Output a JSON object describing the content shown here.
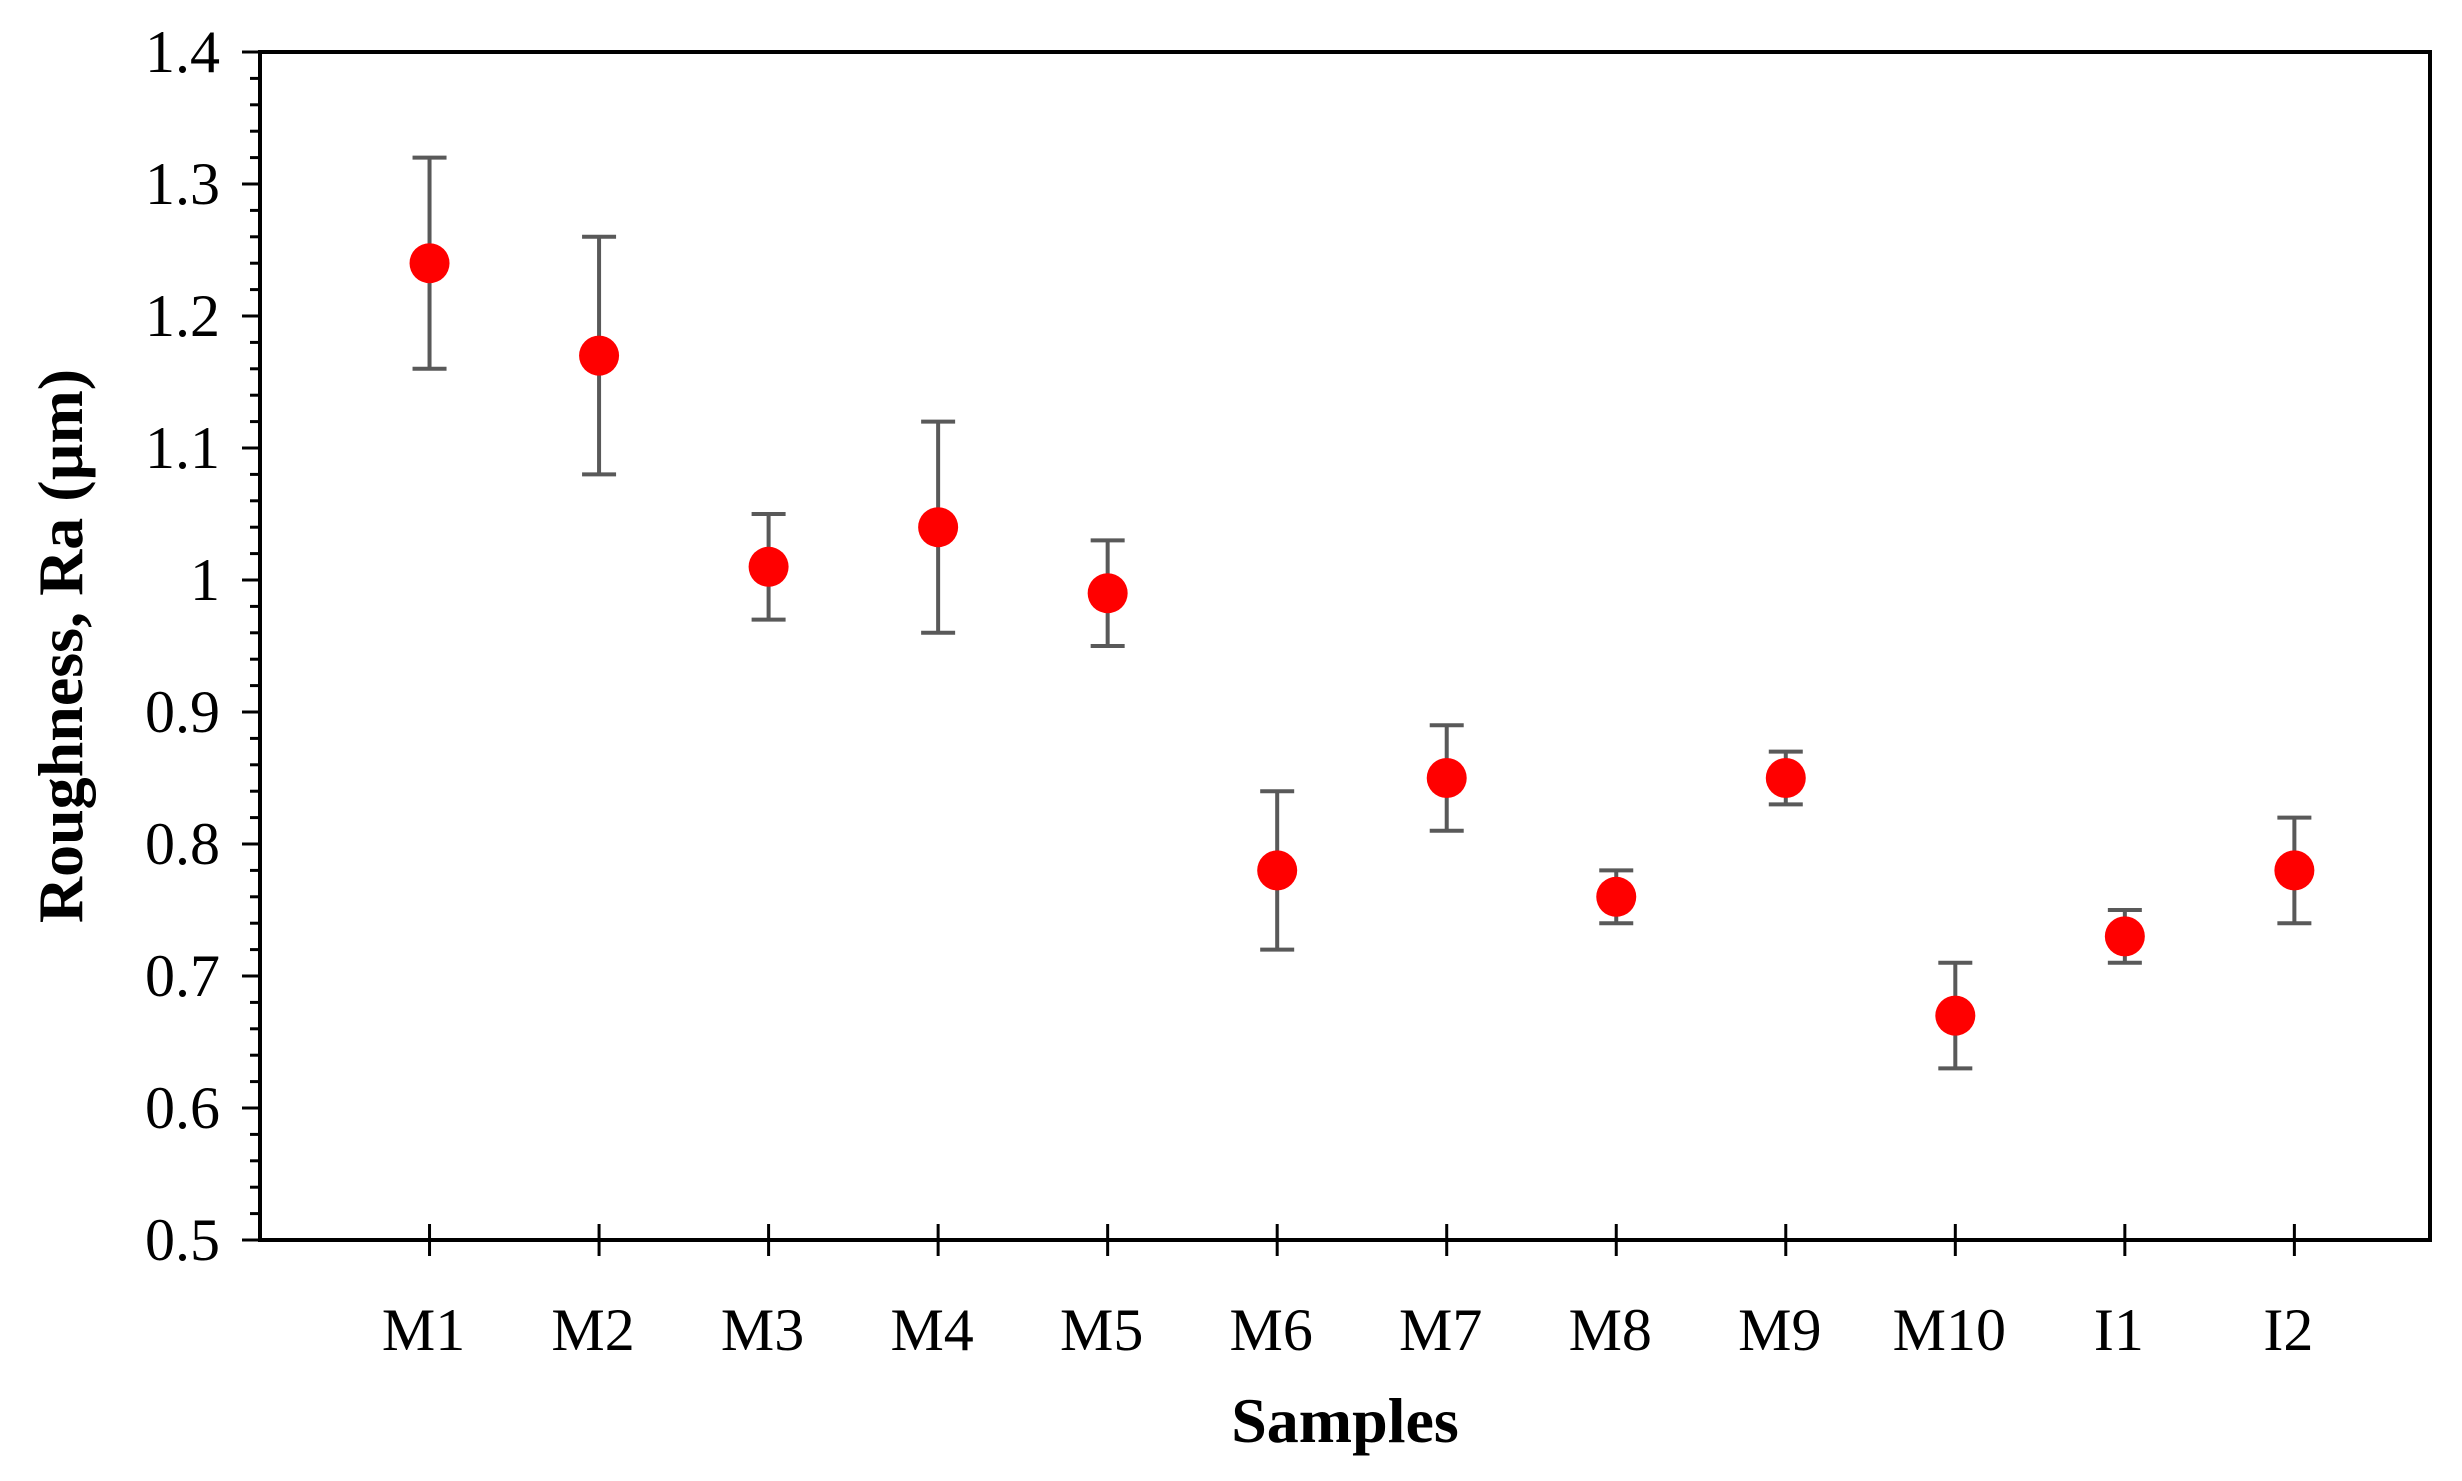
{
  "colors": {
    "marker": "#ff0000",
    "error_bar": "#595959",
    "axis": "#000000",
    "background": "#ffffff"
  },
  "chart_data": {
    "type": "scatter",
    "title": "",
    "xlabel": "Samples",
    "ylabel": "Roughness, Ra (µm)",
    "categories": [
      "M1",
      "M2",
      "M3",
      "M4",
      "M5",
      "M6",
      "M7",
      "M8",
      "M9",
      "M10",
      "I1",
      "I2"
    ],
    "values": [
      1.24,
      1.17,
      1.01,
      1.04,
      0.99,
      0.78,
      0.85,
      0.76,
      0.85,
      0.67,
      0.73,
      0.78
    ],
    "error_low": [
      1.16,
      1.08,
      0.97,
      0.96,
      0.95,
      0.72,
      0.81,
      0.74,
      0.83,
      0.63,
      0.71,
      0.74
    ],
    "error_high": [
      1.32,
      1.26,
      1.05,
      1.12,
      1.03,
      0.84,
      0.89,
      0.78,
      0.87,
      0.71,
      0.75,
      0.82
    ],
    "ylim": [
      0.5,
      1.4
    ],
    "y_major_step": 0.1,
    "y_minor_step": 0.02,
    "y_tick_labels": [
      "0.5",
      "0.6",
      "0.7",
      "0.8",
      "0.9",
      "1",
      "1.1",
      "1.2",
      "1.3",
      "1.4"
    ],
    "grid": false,
    "legend": "none"
  }
}
